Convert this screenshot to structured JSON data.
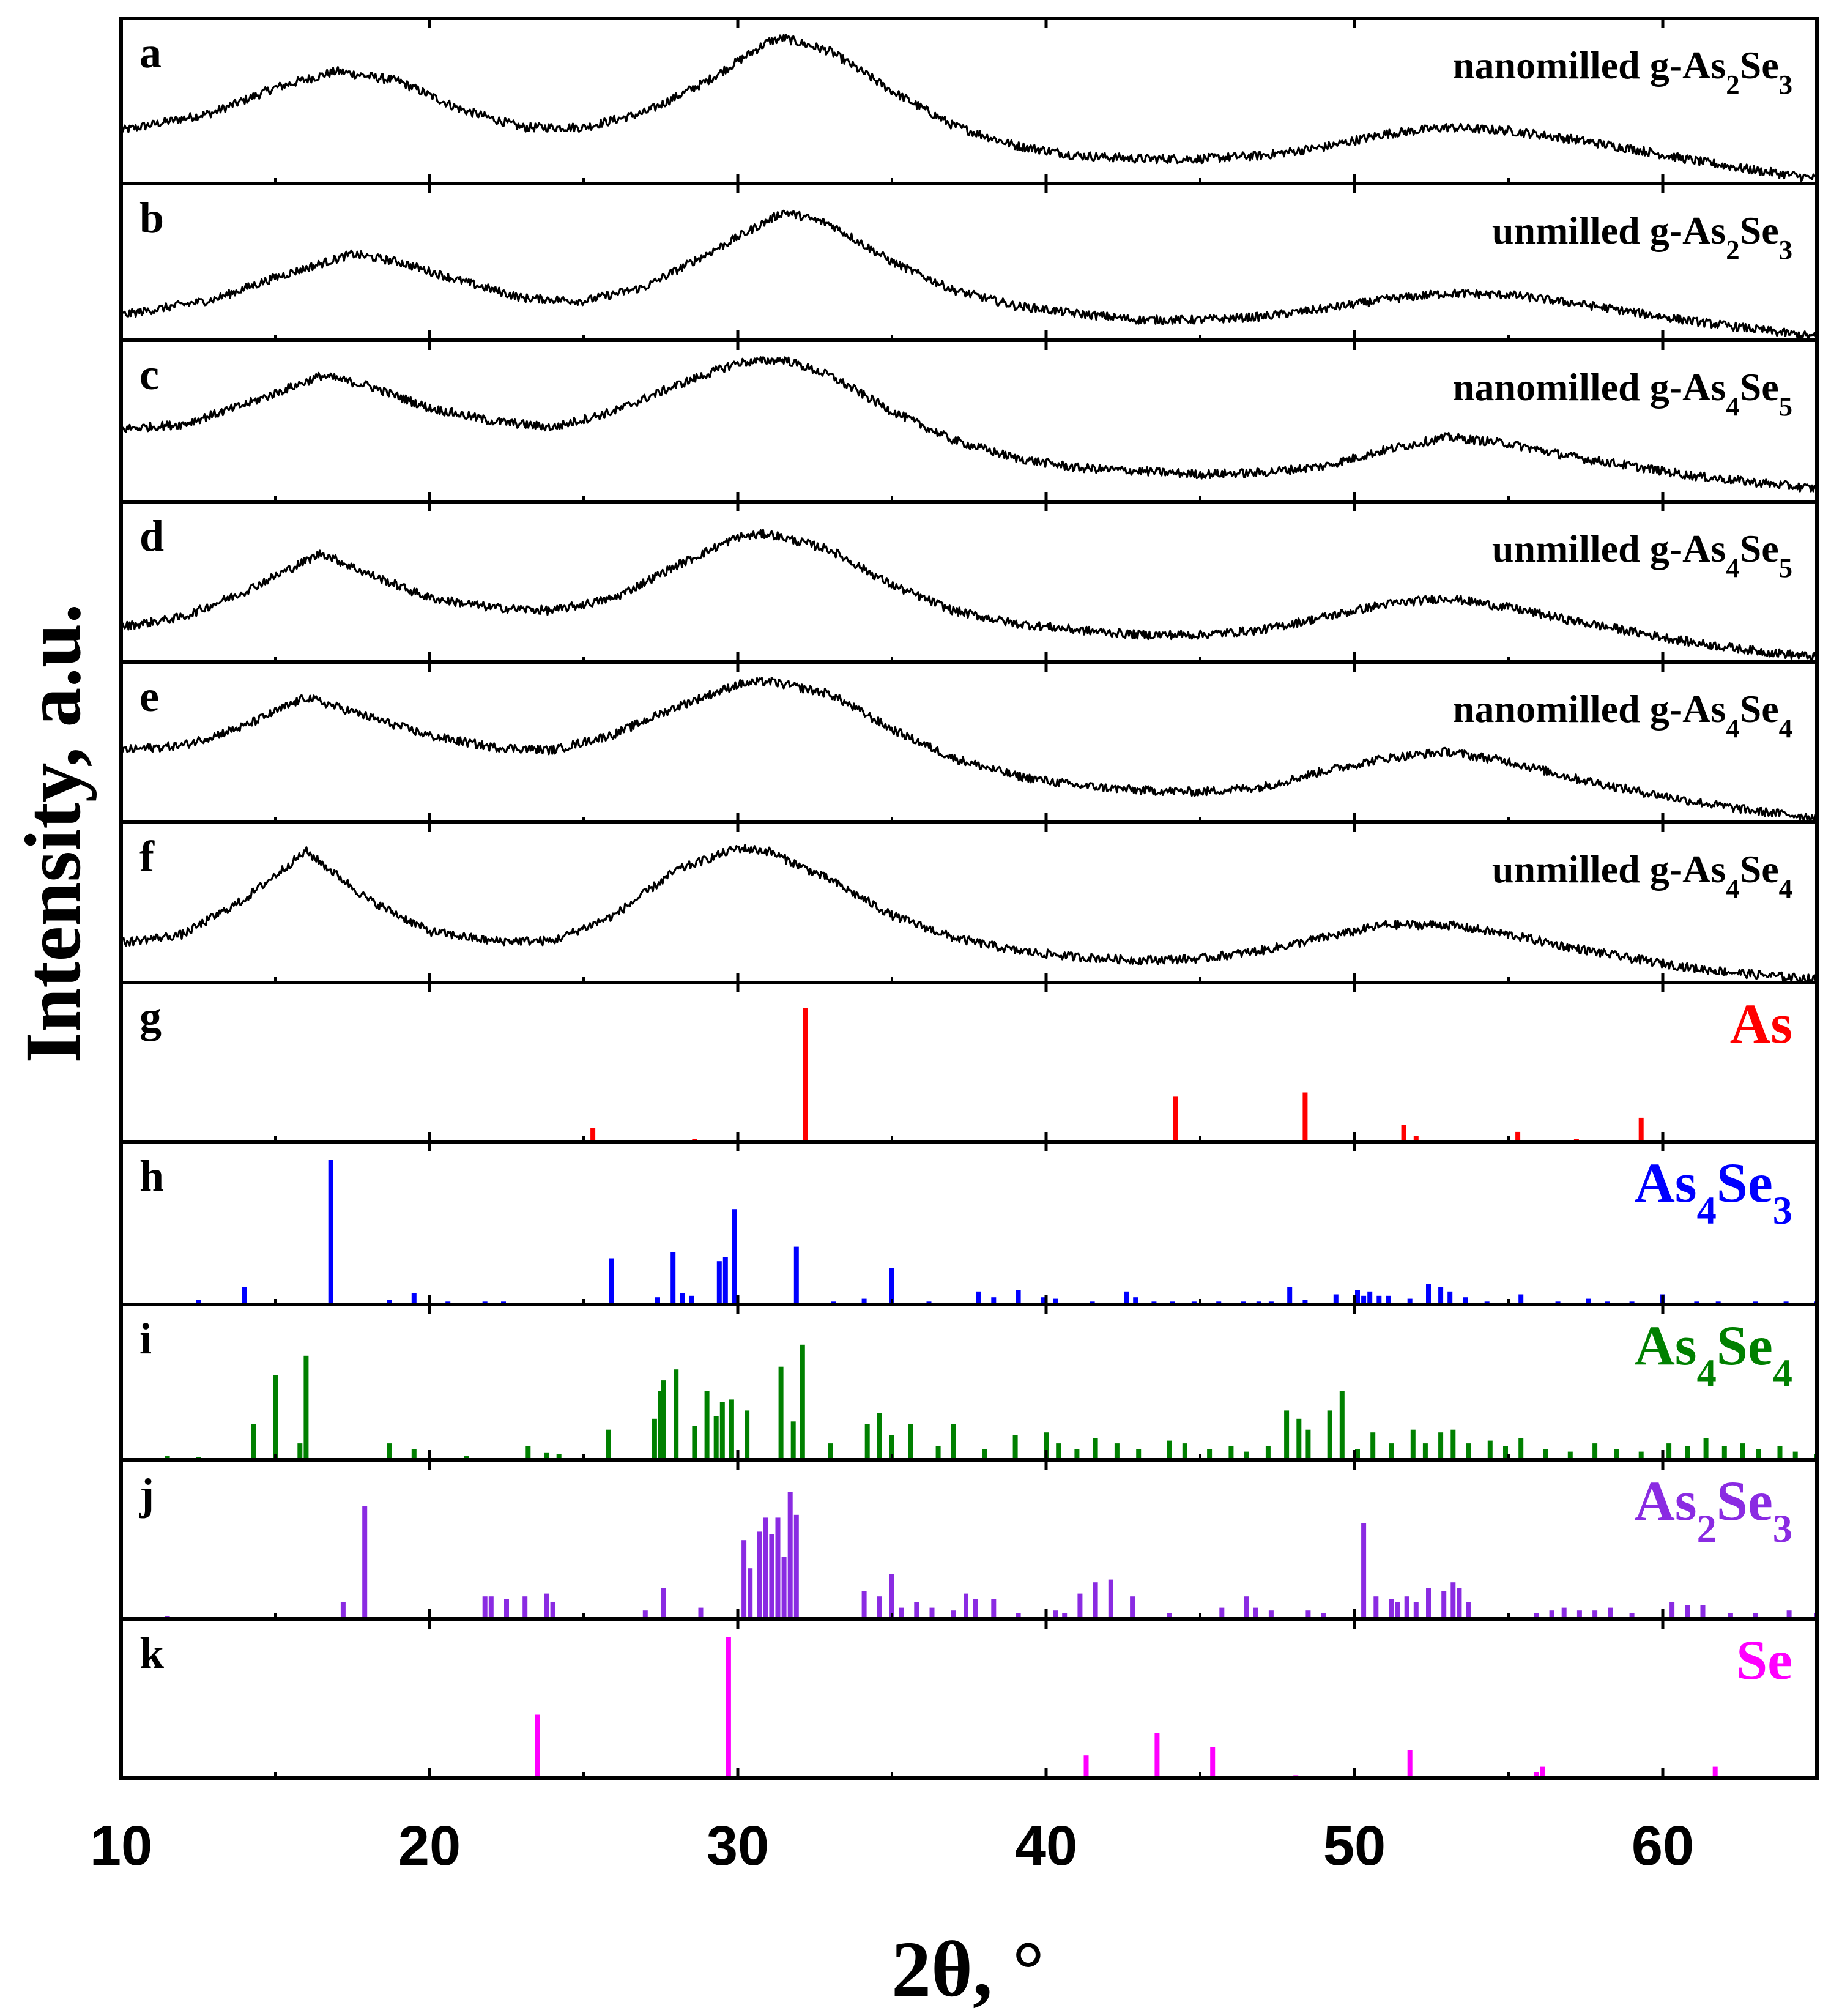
{
  "chart_data": {
    "type": "line",
    "xlabel": "2θ, °",
    "ylabel": "Intensity, a.u.",
    "xlim": [
      10,
      65
    ],
    "xticks": [
      10,
      20,
      30,
      40,
      50,
      60
    ],
    "xtick_labels": [
      "10",
      "20",
      "30",
      "40",
      "50",
      "60"
    ],
    "panels": [
      {
        "id": "a",
        "kind": "pattern",
        "name": "nanomilled g-As",
        "sub1": "2",
        "mid": "Se",
        "sub2": "3",
        "color": "#000000",
        "x": [
          10,
          13,
          15,
          17,
          19,
          21,
          23,
          25,
          27,
          29,
          31,
          31.5,
          33,
          35,
          37,
          39,
          41,
          43,
          45,
          47,
          49,
          51,
          53,
          55,
          57,
          59,
          61,
          63,
          65
        ],
        "y": [
          0.32,
          0.43,
          0.58,
          0.68,
          0.62,
          0.45,
          0.34,
          0.34,
          0.43,
          0.62,
          0.86,
          0.88,
          0.8,
          0.56,
          0.35,
          0.23,
          0.17,
          0.15,
          0.15,
          0.17,
          0.22,
          0.3,
          0.34,
          0.32,
          0.27,
          0.21,
          0.14,
          0.08,
          0.03
        ]
      },
      {
        "id": "b",
        "kind": "pattern",
        "name": "unmilled g-As",
        "sub1": "2",
        "mid": "Se",
        "sub2": "3",
        "color": "#000000",
        "x": [
          10,
          13,
          15,
          17.5,
          19,
          21,
          23,
          25,
          27,
          29,
          31.5,
          33,
          35,
          37,
          39,
          41,
          43,
          45,
          47,
          49,
          51,
          53,
          55,
          57,
          59,
          61,
          63,
          65
        ],
        "y": [
          0.16,
          0.26,
          0.4,
          0.55,
          0.5,
          0.38,
          0.27,
          0.25,
          0.34,
          0.55,
          0.82,
          0.74,
          0.5,
          0.32,
          0.22,
          0.17,
          0.13,
          0.13,
          0.15,
          0.2,
          0.26,
          0.3,
          0.29,
          0.24,
          0.18,
          0.12,
          0.07,
          0.02
        ]
      },
      {
        "id": "c",
        "kind": "pattern",
        "name": "nanomilled g-As",
        "sub1": "4",
        "mid": "Se",
        "sub2": "5",
        "color": "#000000",
        "x": [
          10,
          12,
          14,
          16.5,
          18,
          20,
          22,
          24,
          26,
          28,
          30,
          31.5,
          33,
          35,
          37,
          39,
          41,
          43,
          45,
          47,
          49,
          51,
          53,
          55,
          57,
          59,
          61,
          63,
          65
        ],
        "y": [
          0.45,
          0.48,
          0.6,
          0.78,
          0.72,
          0.58,
          0.5,
          0.46,
          0.56,
          0.72,
          0.86,
          0.88,
          0.78,
          0.56,
          0.38,
          0.27,
          0.21,
          0.19,
          0.17,
          0.18,
          0.22,
          0.32,
          0.4,
          0.36,
          0.28,
          0.22,
          0.16,
          0.12,
          0.08
        ]
      },
      {
        "id": "d",
        "kind": "pattern",
        "name": "unmilled g-As",
        "sub1": "4",
        "mid": "Se",
        "sub2": "5",
        "color": "#000000",
        "x": [
          10,
          12,
          14,
          16.5,
          18,
          20,
          22,
          24,
          26,
          28,
          30,
          31,
          33,
          35,
          37,
          39,
          41,
          43,
          45,
          47,
          49,
          51,
          53,
          55,
          57,
          59,
          61,
          63,
          65
        ],
        "y": [
          0.22,
          0.28,
          0.44,
          0.68,
          0.55,
          0.4,
          0.34,
          0.32,
          0.4,
          0.6,
          0.78,
          0.8,
          0.7,
          0.48,
          0.32,
          0.24,
          0.2,
          0.17,
          0.17,
          0.2,
          0.28,
          0.36,
          0.4,
          0.34,
          0.26,
          0.19,
          0.12,
          0.07,
          0.03
        ]
      },
      {
        "id": "e",
        "kind": "pattern",
        "name": "nanomilled g-As",
        "sub1": "4",
        "mid": "Se",
        "sub2": "4",
        "color": "#000000",
        "x": [
          10,
          12,
          14,
          16,
          18,
          20,
          22,
          24,
          26,
          28,
          30,
          31,
          33,
          35,
          37,
          39,
          41,
          43,
          45,
          47,
          49,
          51,
          53,
          55,
          57,
          59,
          61,
          63,
          65
        ],
        "y": [
          0.45,
          0.48,
          0.6,
          0.78,
          0.66,
          0.54,
          0.47,
          0.45,
          0.55,
          0.72,
          0.86,
          0.88,
          0.8,
          0.58,
          0.4,
          0.29,
          0.23,
          0.2,
          0.19,
          0.22,
          0.32,
          0.4,
          0.44,
          0.38,
          0.28,
          0.2,
          0.13,
          0.07,
          0.03
        ]
      },
      {
        "id": "f",
        "kind": "pattern",
        "name": "unmilled g-As",
        "sub1": "4",
        "mid": "Se",
        "sub2": "4",
        "color": "#000000",
        "x": [
          10,
          12,
          14,
          16,
          18,
          20,
          22,
          24,
          26,
          28,
          30,
          31,
          33,
          35,
          37,
          39,
          41,
          43,
          45,
          47,
          49,
          51,
          53,
          55,
          57,
          59,
          61,
          63,
          65
        ],
        "y": [
          0.25,
          0.3,
          0.52,
          0.82,
          0.52,
          0.32,
          0.26,
          0.26,
          0.42,
          0.7,
          0.84,
          0.82,
          0.64,
          0.42,
          0.28,
          0.2,
          0.16,
          0.14,
          0.15,
          0.2,
          0.28,
          0.36,
          0.36,
          0.3,
          0.22,
          0.15,
          0.09,
          0.05,
          0.02
        ]
      },
      {
        "id": "g",
        "kind": "sticks",
        "name": "As",
        "sub1": "",
        "mid": "",
        "sub2": "",
        "color": "#ff0000",
        "positions": [
          25.3,
          28.6,
          32.2,
          44.2,
          48.4,
          51.6,
          52.0,
          55.3,
          57.2,
          59.3
        ],
        "heights": [
          0.1,
          0.02,
          0.95,
          0.32,
          0.35,
          0.12,
          0.04,
          0.07,
          0.02,
          0.17
        ]
      },
      {
        "id": "h",
        "kind": "sticks",
        "name": "As",
        "sub1": "4",
        "mid": "Se",
        "sub2": "3",
        "color": "#0000ff",
        "positions": [
          12.5,
          14.0,
          16.8,
          18.7,
          19.5,
          20.6,
          21.8,
          22.4,
          25.9,
          27.4,
          27.9,
          28.2,
          28.5,
          29.4,
          29.6,
          29.9,
          31.9,
          33.1,
          34.1,
          35.0,
          36.2,
          37.8,
          38.3,
          39.1,
          39.9,
          40.3,
          41.5,
          42.6,
          42.9,
          43.5,
          44.1,
          44.8,
          45.6,
          46.4,
          46.9,
          47.3,
          47.9,
          48.4,
          49.4,
          50.1,
          50.3,
          50.5,
          50.8,
          51.1,
          51.8,
          52.4,
          52.8,
          53.1,
          53.6,
          54.3,
          55.4,
          56.6,
          57.6,
          58.2,
          59.0,
          60.0,
          61.1,
          61.8,
          63.0,
          64.0,
          65.0
        ],
        "heights": [
          0.03,
          0.12,
          1.0,
          0.03,
          0.08,
          0.02,
          0.02,
          0.02,
          0.32,
          0.05,
          0.36,
          0.08,
          0.06,
          0.3,
          0.33,
          0.66,
          0.4,
          0.02,
          0.04,
          0.25,
          0.02,
          0.09,
          0.05,
          0.1,
          0.05,
          0.04,
          0.02,
          0.09,
          0.05,
          0.02,
          0.02,
          0.02,
          0.02,
          0.02,
          0.02,
          0.02,
          0.12,
          0.03,
          0.07,
          0.1,
          0.06,
          0.09,
          0.06,
          0.06,
          0.04,
          0.14,
          0.12,
          0.09,
          0.05,
          0.02,
          0.07,
          0.02,
          0.04,
          0.02,
          0.02,
          0.07,
          0.02,
          0.02,
          0.02,
          0.02,
          0.02
        ]
      },
      {
        "id": "i",
        "kind": "sticks",
        "name": "As",
        "sub1": "4",
        "mid": "Se",
        "sub2": "4",
        "color": "#008000",
        "positions": [
          11.5,
          12.5,
          14.3,
          15.0,
          15.8,
          16.0,
          18.7,
          19.5,
          21.2,
          23.2,
          23.8,
          24.2,
          25.8,
          27.3,
          27.5,
          27.6,
          28.0,
          28.6,
          29.0,
          29.3,
          29.5,
          29.8,
          30.3,
          31.4,
          31.8,
          32.1,
          33.0,
          34.2,
          34.6,
          35.0,
          35.6,
          36.5,
          37.0,
          38.0,
          39.0,
          40.0,
          40.4,
          41.0,
          41.6,
          42.3,
          43.0,
          44.0,
          44.5,
          45.3,
          46.0,
          46.5,
          47.2,
          47.8,
          48.2,
          48.5,
          49.2,
          49.6,
          50.1,
          50.6,
          51.2,
          51.9,
          52.3,
          52.8,
          53.2,
          53.7,
          54.4,
          54.9,
          55.4,
          56.2,
          57.0,
          57.8,
          58.5,
          59.3,
          60.2,
          60.8,
          61.4,
          62.0,
          62.6,
          63.1,
          63.8,
          64.3,
          65.0
        ],
        "heights": [
          0.03,
          0.02,
          0.26,
          0.62,
          0.12,
          0.76,
          0.12,
          0.08,
          0.03,
          0.1,
          0.05,
          0.04,
          0.22,
          0.3,
          0.5,
          0.58,
          0.66,
          0.25,
          0.5,
          0.32,
          0.42,
          0.44,
          0.36,
          0.68,
          0.28,
          0.84,
          0.12,
          0.26,
          0.34,
          0.18,
          0.26,
          0.1,
          0.26,
          0.08,
          0.18,
          0.2,
          0.12,
          0.08,
          0.16,
          0.12,
          0.08,
          0.14,
          0.12,
          0.08,
          0.1,
          0.06,
          0.1,
          0.36,
          0.3,
          0.22,
          0.36,
          0.5,
          0.08,
          0.2,
          0.12,
          0.22,
          0.12,
          0.2,
          0.22,
          0.12,
          0.14,
          0.1,
          0.16,
          0.08,
          0.06,
          0.12,
          0.08,
          0.06,
          0.12,
          0.1,
          0.16,
          0.1,
          0.12,
          0.08,
          0.1,
          0.06,
          0.04
        ]
      },
      {
        "id": "j",
        "kind": "sticks",
        "name": "As",
        "sub1": "2",
        "mid": "Se",
        "sub2": "3",
        "color": "#8a2be2",
        "positions": [
          11.5,
          17.2,
          17.9,
          21.8,
          22.0,
          22.5,
          23.1,
          23.8,
          24.0,
          27.0,
          27.6,
          28.8,
          30.2,
          30.4,
          30.7,
          30.9,
          31.1,
          31.3,
          31.5,
          31.7,
          31.9,
          34.1,
          34.6,
          35.0,
          35.3,
          35.8,
          36.3,
          37.0,
          37.4,
          37.7,
          38.3,
          39.1,
          40.3,
          40.6,
          41.1,
          41.6,
          42.1,
          42.8,
          44.0,
          45.7,
          46.5,
          46.8,
          47.3,
          48.5,
          49.0,
          50.3,
          50.7,
          51.2,
          51.4,
          51.7,
          52.0,
          52.4,
          52.9,
          53.2,
          53.4,
          53.7,
          55.9,
          56.4,
          56.8,
          57.3,
          57.8,
          58.3,
          59.0,
          60.3,
          60.8,
          61.3,
          62.2,
          63.0,
          64.1,
          65.0
        ],
        "heights": [
          0.02,
          0.12,
          0.8,
          0.16,
          0.16,
          0.14,
          0.16,
          0.18,
          0.12,
          0.06,
          0.22,
          0.08,
          0.56,
          0.36,
          0.62,
          0.72,
          0.6,
          0.72,
          0.44,
          0.9,
          0.74,
          0.2,
          0.16,
          0.32,
          0.08,
          0.12,
          0.08,
          0.06,
          0.18,
          0.14,
          0.14,
          0.04,
          0.06,
          0.04,
          0.18,
          0.26,
          0.28,
          0.16,
          0.04,
          0.08,
          0.16,
          0.08,
          0.06,
          0.06,
          0.04,
          0.68,
          0.16,
          0.14,
          0.12,
          0.16,
          0.12,
          0.22,
          0.2,
          0.26,
          0.22,
          0.12,
          0.04,
          0.06,
          0.08,
          0.06,
          0.06,
          0.08,
          0.04,
          0.12,
          0.1,
          0.1,
          0.04,
          0.04,
          0.06,
          0.04
        ]
      },
      {
        "id": "k",
        "kind": "sticks",
        "name": "Se",
        "sub1": "",
        "mid": "",
        "sub2": "",
        "color": "#ff00ff",
        "positions": [
          23.5,
          29.7,
          41.3,
          43.6,
          45.4,
          48.1,
          51.8,
          55.9,
          56.1,
          61.7
        ],
        "heights": [
          0.45,
          1.0,
          0.16,
          0.32,
          0.22,
          0.02,
          0.2,
          0.04,
          0.08,
          0.08
        ]
      }
    ]
  }
}
